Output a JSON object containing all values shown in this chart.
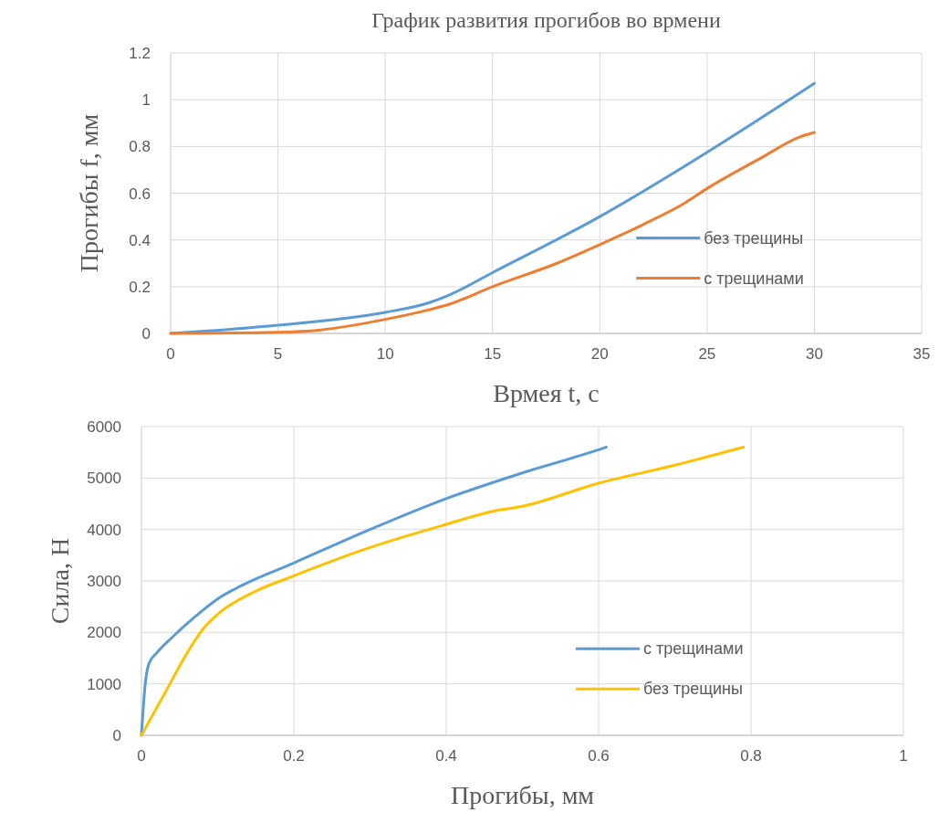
{
  "chart_data": [
    {
      "type": "line",
      "title": "График развития прогибов во врмени",
      "xlabel": "Врмея t, с",
      "ylabel": "Прогибы f, мм",
      "xlim": [
        0,
        35
      ],
      "xticks": [
        0,
        5,
        10,
        15,
        20,
        25,
        30,
        35
      ],
      "ylim": [
        0,
        1.2
      ],
      "yticks": [
        0,
        0.2,
        0.4,
        0.6,
        0.8,
        1,
        1.2
      ],
      "grid": true,
      "legend": "right",
      "series": [
        {
          "name": "без трещины",
          "color": "#5b9bd5",
          "x": [
            0,
            5,
            10,
            12,
            13,
            15,
            20,
            25,
            30
          ],
          "values": [
            0,
            0.035,
            0.09,
            0.13,
            0.165,
            0.26,
            0.5,
            0.775,
            1.07
          ]
        },
        {
          "name": "с трещинами",
          "color": "#ed7d31",
          "x": [
            0,
            5,
            7,
            10,
            12,
            13,
            15,
            18,
            20,
            22,
            24,
            25,
            27.5,
            29.3,
            30
          ],
          "values": [
            0,
            0.005,
            0.015,
            0.06,
            0.1,
            0.125,
            0.2,
            0.3,
            0.38,
            0.465,
            0.56,
            0.62,
            0.75,
            0.84,
            0.86
          ]
        }
      ]
    },
    {
      "type": "line",
      "xlabel": "Прогибы, мм",
      "ylabel": "Сила, Н",
      "xlim": [
        0,
        1
      ],
      "xticks": [
        0,
        0.2,
        0.4,
        0.6,
        0.8,
        1
      ],
      "ylim": [
        0,
        6000
      ],
      "yticks": [
        0,
        1000,
        2000,
        3000,
        4000,
        5000,
        6000
      ],
      "grid": true,
      "legend": "bottom right",
      "series": [
        {
          "name": "с трещинами",
          "color": "#5b9bd5",
          "x": [
            0,
            0.005,
            0.01,
            0.02,
            0.04,
            0.07,
            0.1,
            0.13,
            0.2,
            0.3,
            0.4,
            0.5,
            0.6,
            0.61
          ],
          "values": [
            0,
            1000,
            1400,
            1600,
            1900,
            2300,
            2650,
            2900,
            3350,
            4000,
            4600,
            5100,
            5550,
            5600
          ]
        },
        {
          "name": "без трещины",
          "color": "#ffc000",
          "x": [
            0,
            0.03,
            0.06,
            0.08,
            0.1,
            0.15,
            0.2,
            0.3,
            0.4,
            0.46,
            0.5,
            0.6,
            0.7,
            0.79
          ],
          "values": [
            0,
            800,
            1600,
            2050,
            2350,
            2800,
            3100,
            3650,
            4100,
            4350,
            4450,
            4900,
            5250,
            5600
          ]
        }
      ]
    }
  ]
}
